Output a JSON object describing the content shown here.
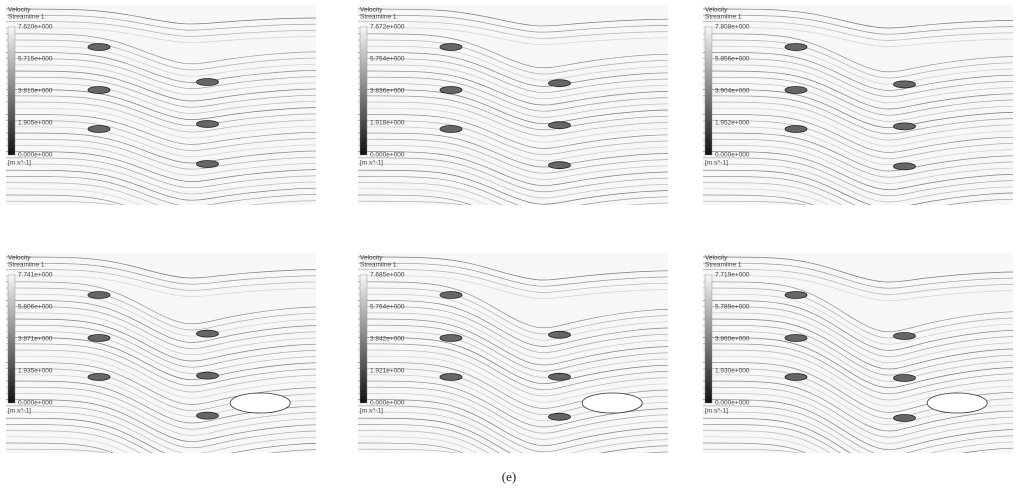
{
  "panels": [
    {
      "legend_title": "Velocity",
      "legend_subtitle": "Streamline 1",
      "ticks": [
        "7.620e+000",
        "5.715e+000",
        "3.810e+000",
        "1.905e+000",
        "0.000e+000"
      ],
      "unit": "[m s^-1]"
    },
    {
      "legend_title": "Velocity",
      "legend_subtitle": "Streamline 1",
      "ticks": [
        "7.672e+000",
        "5.754e+000",
        "3.836e+000",
        "1.918e+000",
        "0.000e+000"
      ],
      "unit": "[m s^-1]"
    },
    {
      "legend_title": "Velocity",
      "legend_subtitle": "Streamline 1",
      "ticks": [
        "7.808e+000",
        "5.856e+000",
        "3.904e+000",
        "1.952e+000",
        "0.000e+000"
      ],
      "unit": "[m s^-1]"
    },
    {
      "legend_title": "Velocity",
      "legend_subtitle": "Streamline 1",
      "ticks": [
        "7.741e+000",
        "5.806e+000",
        "3.871e+000",
        "1.935e+000",
        "0.000e+000"
      ],
      "unit": "[m s^-1]"
    },
    {
      "legend_title": "Velocity",
      "legend_subtitle": "Streamline 1",
      "ticks": [
        "7.685e+000",
        "5.764e+000",
        "3.842e+000",
        "1.921e+000",
        "0.000e+000"
      ],
      "unit": "[m s^-1]"
    },
    {
      "legend_title": "Velocity",
      "legend_subtitle": "Streamline 1",
      "ticks": [
        "7.719e+000",
        "5.789e+000",
        "3.860e+000",
        "1.930e+000",
        "0.000e+000"
      ],
      "unit": "[m s^-1]"
    }
  ],
  "caption": "(e)"
}
